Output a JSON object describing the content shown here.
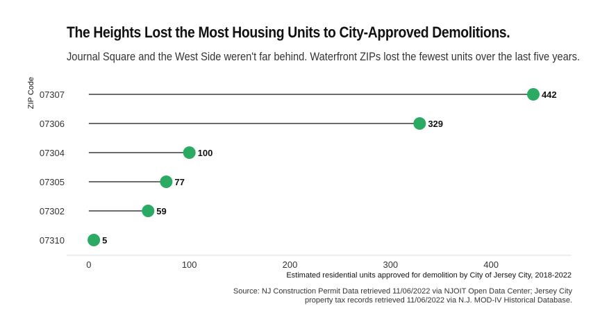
{
  "chart_data": {
    "type": "lollipop",
    "title": "The Heights Lost the Most Housing Units to City-Approved Demolitions.",
    "subtitle": "Journal Square and the West Side weren't far behind. Waterfront ZIPs lost the fewest units over the last five years.",
    "xlabel": "Estimated residential units approved for demolition by City of Jersey City, 2018-2022",
    "ylabel": "ZIP Code",
    "categories": [
      "07307",
      "07306",
      "07304",
      "07305",
      "07302",
      "07310"
    ],
    "values": [
      442,
      329,
      100,
      77,
      59,
      5
    ],
    "xlim": [
      -22,
      480
    ],
    "xticks": [
      0,
      100,
      200,
      300,
      400
    ],
    "grid": false,
    "colors": {
      "point": "#2aaa62",
      "stem": "#111111"
    }
  },
  "source": "Source: NJ Construction Permit Data retrieved 11/06/2022 via NJOIT Open Data Center; Jersey City property tax records retrieved 11/06/2022 via N.J. MOD-IV Historical Database."
}
